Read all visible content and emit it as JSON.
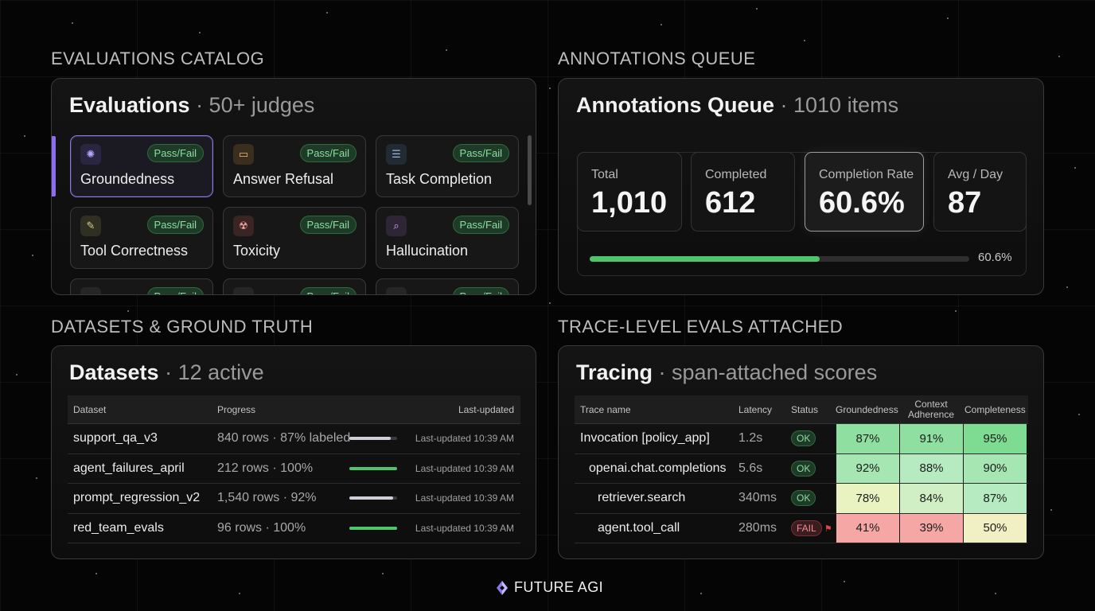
{
  "sections": {
    "evaluations": "EVALUATIONS CATALOG",
    "annotations": "ANNOTATIONS QUEUE",
    "datasets": "DATASETS & GROUND TRUTH",
    "tracing": "TRACE-LEVEL EVALS ATTACHED"
  },
  "evaluations": {
    "title": "Evaluations",
    "subtitle": "· 50+ judges",
    "cards": [
      {
        "name": "Groundedness",
        "badge": "Pass/Fail",
        "icon": "brain-icon",
        "selected": true
      },
      {
        "name": "Answer Refusal",
        "badge": "Pass/Fail",
        "icon": "message-icon"
      },
      {
        "name": "Task Completion",
        "badge": "Pass/Fail",
        "icon": "list-icon"
      },
      {
        "name": "Tool Correctness",
        "badge": "Pass/Fail",
        "icon": "wrench-icon"
      },
      {
        "name": "Toxicity",
        "badge": "Pass/Fail",
        "icon": "hazard-icon"
      },
      {
        "name": "Hallucination",
        "badge": "Pass/Fail",
        "icon": "magnify-icon"
      }
    ],
    "partial_badges": [
      "Pass/Fail",
      "Pass/Fail",
      "Pass/Fail"
    ]
  },
  "annotations": {
    "title": "Annotations Queue",
    "subtitle": "· 1010 items",
    "stats": [
      {
        "label": "Total",
        "value": "1,010"
      },
      {
        "label": "Completed",
        "value": "612"
      },
      {
        "label": "Completion Rate",
        "value": "60.6%"
      },
      {
        "label": "Avg / Day",
        "value": "87"
      }
    ],
    "progress_fraction": 0.606,
    "progress_label": "60.6%"
  },
  "datasets": {
    "title": "Datasets",
    "subtitle": "· 12 active",
    "columns": [
      "Dataset",
      "Progress",
      "Last-updated"
    ],
    "rows": [
      {
        "name": "support_qa_v3",
        "progress": "840 rows · 87% labeled",
        "fraction": 0.87,
        "color": "#cfcfd8",
        "updated": "Last-updated 10:39 AM"
      },
      {
        "name": "agent_failures_april",
        "progress": "212 rows · 100%",
        "fraction": 1.0,
        "color": "#4fc46c",
        "updated": "Last-updated 10:39 AM"
      },
      {
        "name": "prompt_regression_v2",
        "progress": "1,540 rows · 92%",
        "fraction": 0.92,
        "color": "#cfcfd8",
        "updated": "Last-updated 10:39 AM"
      },
      {
        "name": "red_team_evals",
        "progress": "96 rows · 100%",
        "fraction": 1.0,
        "color": "#4fc46c",
        "updated": "Last-updated 10:39 AM"
      }
    ]
  },
  "tracing": {
    "title": "Tracing",
    "subtitle": "· span-attached scores",
    "columns": [
      "Trace name",
      "Latency",
      "Status",
      "Groundedness",
      "Context Adherence",
      "Completeness"
    ],
    "rows": [
      {
        "name": "Invocation [policy_app]",
        "indent": 0,
        "latency": "1.2s",
        "status": "OK",
        "scores": [
          "87%",
          "91%",
          "95%"
        ],
        "colors": [
          "#8fe0a0",
          "#8fe0a0",
          "#7ddc92"
        ]
      },
      {
        "name": "openai.chat.completions",
        "indent": 1,
        "latency": "5.6s",
        "status": "OK",
        "scores": [
          "92%",
          "88%",
          "90%"
        ],
        "colors": [
          "#a5e6b2",
          "#b6eac0",
          "#a5e6b2"
        ]
      },
      {
        "name": "retriever.search",
        "indent": 2,
        "latency": "340ms",
        "status": "OK",
        "scores": [
          "78%",
          "84%",
          "87%"
        ],
        "colors": [
          "#e9f3c2",
          "#d0efc5",
          "#b6eac0"
        ]
      },
      {
        "name": "agent.tool_call",
        "indent": 2,
        "latency": "280ms",
        "status": "FAIL",
        "scores": [
          "41%",
          "39%",
          "50%"
        ],
        "colors": [
          "#f4a7a4",
          "#f4a7a4",
          "#f1f0c4"
        ]
      }
    ]
  },
  "brand": "FUTURE AGI"
}
